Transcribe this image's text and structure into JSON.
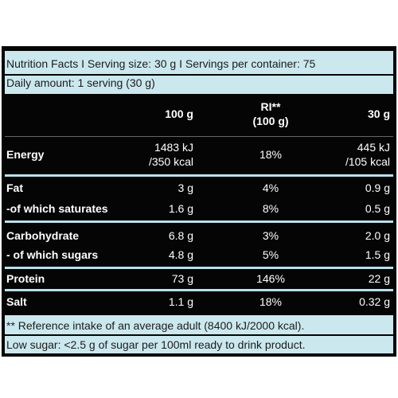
{
  "header": {
    "lines": [
      "Nutrition Facts I Serving size: 30 g I Servings per container: 75",
      "Daily amount: 1 serving (30 g)"
    ]
  },
  "table": {
    "columns": [
      [
        "100 g"
      ],
      [
        "RI**",
        "(100 g)"
      ],
      [
        "30 g"
      ]
    ],
    "rows": [
      {
        "label": "Energy",
        "cells": [
          [
            "1483 kJ",
            "/350 kcal"
          ],
          [
            "18%"
          ],
          [
            "445 kJ",
            "/105 kcal"
          ]
        ]
      },
      {
        "label": "Fat",
        "cells": [
          [
            "3 g"
          ],
          [
            "4%"
          ],
          [
            "0.9 g"
          ]
        ]
      },
      {
        "label": "-of which saturates",
        "cells": [
          [
            "1.6 g"
          ],
          [
            "8%"
          ],
          [
            "0.5 g"
          ]
        ]
      },
      {
        "label": "Carbohydrate",
        "cells": [
          [
            "6.8 g"
          ],
          [
            "3%"
          ],
          [
            "2.0 g"
          ]
        ]
      },
      {
        "label": "- of which sugars",
        "cells": [
          [
            "4.8 g"
          ],
          [
            "5%"
          ],
          [
            "1.5 g"
          ]
        ]
      },
      {
        "label": "Protein",
        "cells": [
          [
            "73 g"
          ],
          [
            "146%"
          ],
          [
            "22 g"
          ]
        ]
      },
      {
        "label": "Salt",
        "cells": [
          [
            "1.1 g"
          ],
          [
            "18%"
          ],
          [
            "0.32 g"
          ]
        ]
      }
    ]
  },
  "footer": {
    "lines": [
      "** Reference intake of an average adult (8400 kJ/2000 kcal).",
      "Low sugar: <2.5 g of sugar per 100ml ready to drink product."
    ]
  }
}
